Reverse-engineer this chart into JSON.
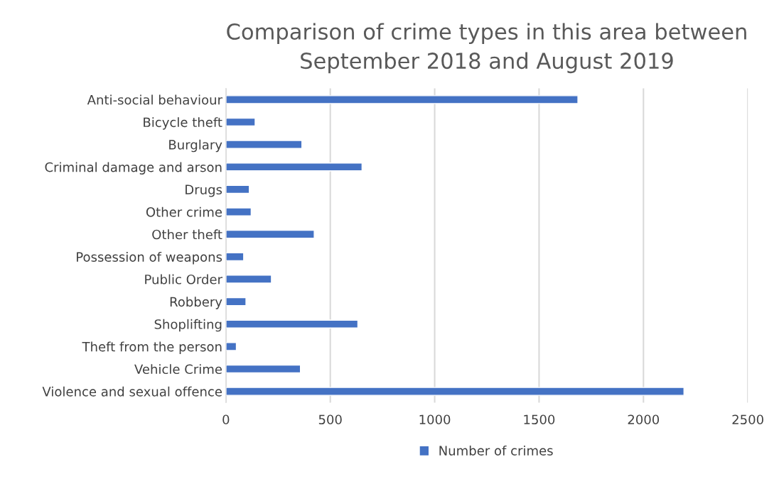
{
  "chart_data": {
    "type": "bar",
    "orientation": "horizontal",
    "title": "Comparison of crime types in this area between\nSeptember 2018 and August 2019",
    "categories": [
      "Anti-social behaviour",
      "Bicycle theft",
      "Burglary",
      "Criminal damage and arson",
      "Drugs",
      "Other crime",
      "Other theft",
      "Possession of weapons",
      "Public Order",
      "Robbery",
      "Shoplifting",
      "Theft from the person",
      "Vehicle Crime",
      "Violence and sexual offence"
    ],
    "series": [
      {
        "name": "Number of crimes",
        "color": "#4472c4",
        "values": [
          1686,
          140,
          364,
          652,
          112,
          121,
          423,
          85,
          218,
          96,
          632,
          50,
          357,
          2194
        ]
      }
    ],
    "xlim": [
      0,
      2500
    ],
    "xticks": [
      0,
      500,
      1000,
      1500,
      2000,
      2500
    ],
    "grid": "x",
    "legend": "bottom"
  }
}
